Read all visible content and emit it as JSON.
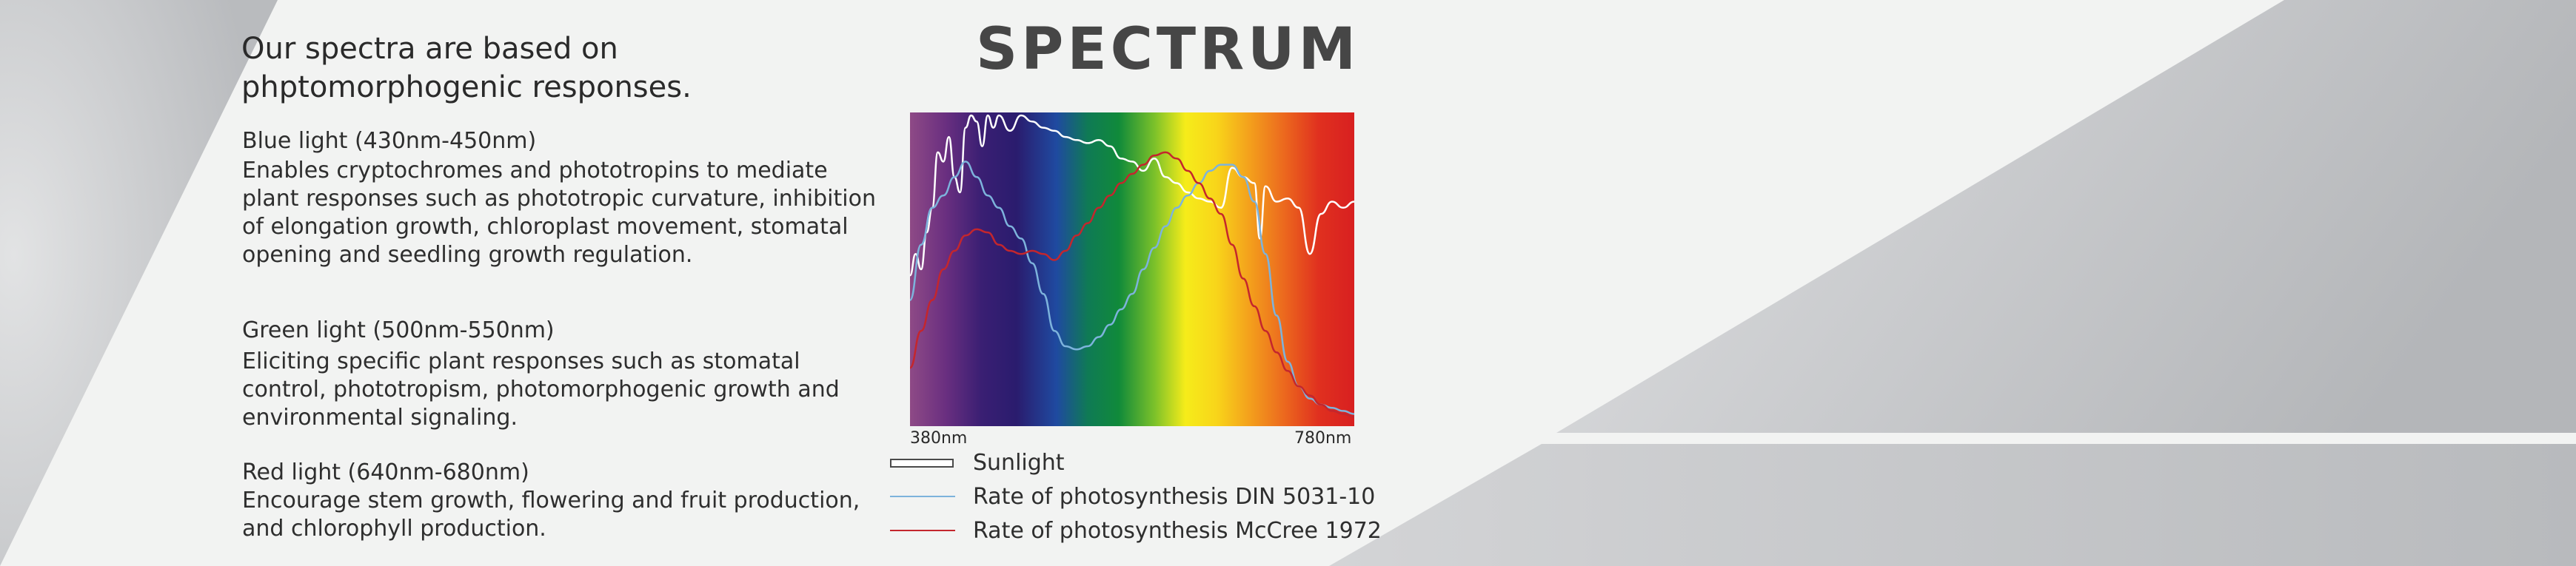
{
  "heading": "Our spectra are based on phptomorphogenic responses.",
  "sections": [
    {
      "title": "Blue light (430nm-450nm)",
      "body": "Enables cryptochromes and phototropins to mediate plant responses such as phototropic curvature, inhibition of elongation growth, chloroplast movement, stomatal opening and seedling growth regulation."
    },
    {
      "title": "Green light (500nm-550nm)",
      "body": "Eliciting specific plant responses such as stomatal control, phototropism, photomorphogenic growth and environmental signaling."
    },
    {
      "title": "Red light (640nm-680nm)",
      "body": "Encourage stem growth, flowering and fruit production, and chlorophyll production."
    }
  ],
  "colors": {
    "sunlight": "#ffffff",
    "din": "#7db3dc",
    "mccree": "#c4262d",
    "background": "#f2f3f2",
    "title": "#464646"
  },
  "chart_data": {
    "type": "line",
    "title": "SPECTRUM",
    "x_tick_labels": [
      "380nm",
      "780nm"
    ],
    "xlim": [
      380,
      780
    ],
    "ylim": [
      0,
      1
    ],
    "grid": false,
    "legend_position": "bottom",
    "background": "visible light spectrum gradient (violet to red)",
    "series": [
      {
        "name": "Sunlight",
        "color": "#ffffff",
        "x": [
          380,
          385,
          390,
          395,
          400,
          405,
          410,
          415,
          420,
          425,
          430,
          435,
          440,
          445,
          450,
          455,
          460,
          470,
          480,
          490,
          500,
          510,
          520,
          530,
          540,
          550,
          560,
          570,
          580,
          590,
          600,
          610,
          620,
          630,
          640,
          650,
          660,
          670,
          680,
          690,
          695,
          700,
          710,
          720,
          730,
          740,
          750,
          760,
          770,
          780
        ],
        "y": [
          0.48,
          0.55,
          0.5,
          0.62,
          0.7,
          0.88,
          0.85,
          0.93,
          0.8,
          0.75,
          0.96,
          1.0,
          0.98,
          0.9,
          1.0,
          0.96,
          1.0,
          0.95,
          1.0,
          0.98,
          0.96,
          0.95,
          0.93,
          0.92,
          0.91,
          0.92,
          0.9,
          0.86,
          0.85,
          0.82,
          0.86,
          0.8,
          0.78,
          0.75,
          0.73,
          0.72,
          0.7,
          0.83,
          0.8,
          0.78,
          0.6,
          0.77,
          0.72,
          0.73,
          0.7,
          0.55,
          0.68,
          0.72,
          0.7,
          0.72
        ]
      },
      {
        "name": "Rate of photosynthesis   DIN 5031-10",
        "color": "#7db3dc",
        "x": [
          380,
          390,
          400,
          410,
          420,
          430,
          440,
          450,
          460,
          470,
          480,
          490,
          500,
          510,
          520,
          530,
          540,
          550,
          560,
          570,
          580,
          590,
          600,
          610,
          620,
          630,
          640,
          650,
          660,
          670,
          680,
          690,
          700,
          710,
          720,
          730,
          740,
          750,
          760,
          770,
          780
        ],
        "y": [
          0.4,
          0.58,
          0.7,
          0.74,
          0.8,
          0.85,
          0.8,
          0.74,
          0.7,
          0.64,
          0.6,
          0.52,
          0.42,
          0.3,
          0.25,
          0.24,
          0.25,
          0.28,
          0.32,
          0.37,
          0.42,
          0.5,
          0.57,
          0.64,
          0.7,
          0.74,
          0.78,
          0.82,
          0.84,
          0.84,
          0.8,
          0.72,
          0.55,
          0.35,
          0.2,
          0.12,
          0.08,
          0.06,
          0.05,
          0.04,
          0.03
        ]
      },
      {
        "name": "Rate of photosynthesis   McCree 1972",
        "color": "#c4262d",
        "x": [
          380,
          390,
          400,
          410,
          420,
          430,
          440,
          450,
          460,
          470,
          480,
          490,
          500,
          510,
          520,
          530,
          540,
          550,
          560,
          570,
          580,
          590,
          600,
          610,
          620,
          630,
          640,
          650,
          660,
          670,
          680,
          690,
          700,
          710,
          720,
          730,
          740,
          750,
          760,
          770,
          780
        ],
        "y": [
          0.18,
          0.3,
          0.4,
          0.5,
          0.56,
          0.61,
          0.63,
          0.62,
          0.58,
          0.56,
          0.55,
          0.56,
          0.55,
          0.53,
          0.56,
          0.61,
          0.65,
          0.7,
          0.74,
          0.78,
          0.81,
          0.84,
          0.87,
          0.88,
          0.86,
          0.82,
          0.78,
          0.73,
          0.68,
          0.58,
          0.47,
          0.38,
          0.3,
          0.23,
          0.17,
          0.12,
          0.09,
          0.06,
          0.04,
          0.03,
          0.02
        ]
      }
    ]
  }
}
